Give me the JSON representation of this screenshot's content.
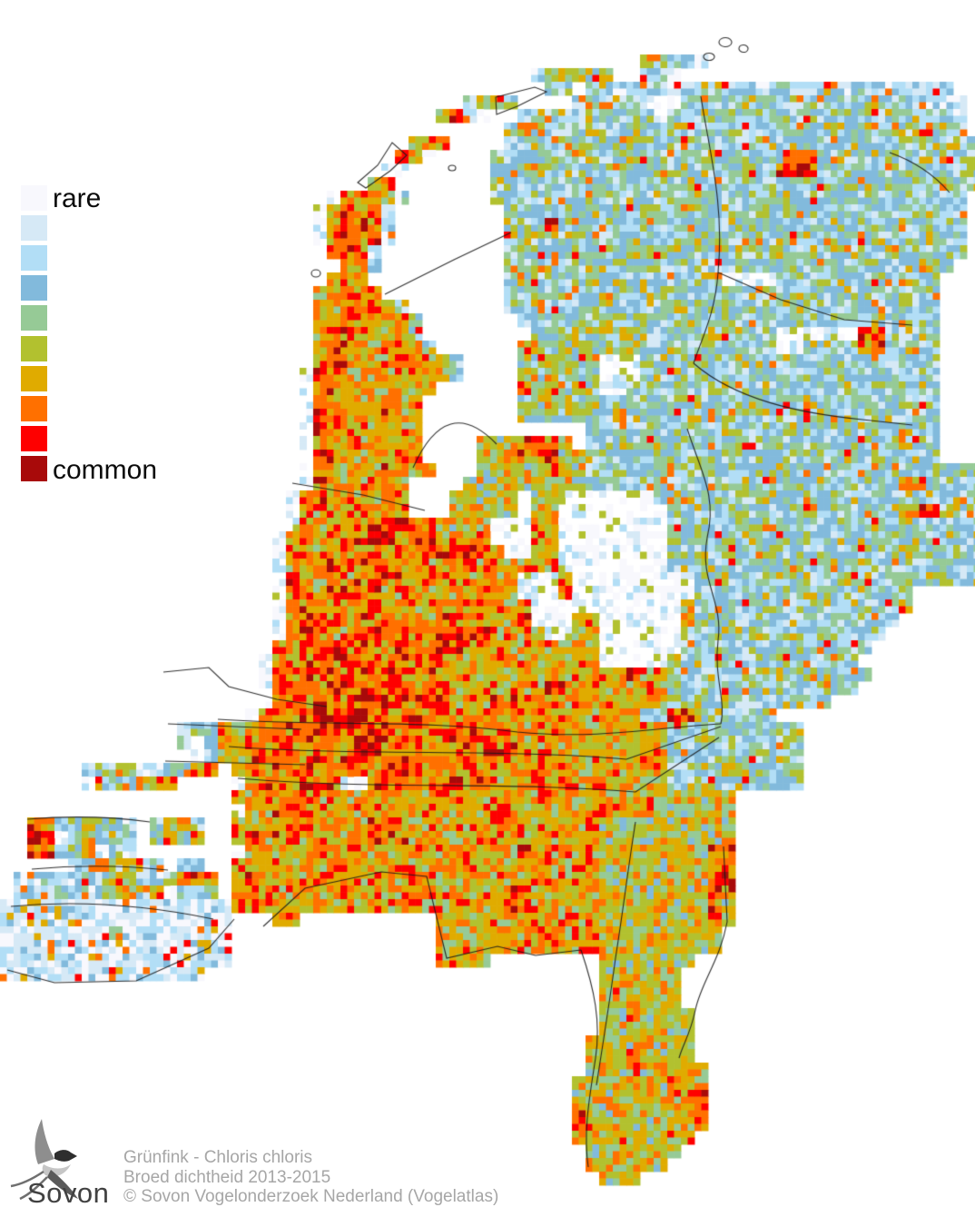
{
  "legend": {
    "rare_label": "rare",
    "common_label": "common",
    "colors": [
      "#f8f8fd",
      "#d6e9f6",
      "#b2def6",
      "#82badc",
      "#96ca96",
      "#b2c12f",
      "#e0ab00",
      "#ff7000",
      "#fe0000",
      "#a80a0a"
    ]
  },
  "caption": {
    "species": "Grünfink - Chloris chloris",
    "subtitle": "Broed dichtheid 2013-2015",
    "copyright": "© Sovon Vogelonderzoek Nederland (Vogelatlas)"
  },
  "logo": {
    "brand": "Sovon"
  },
  "map": {
    "block_size": 15,
    "cols": 72,
    "rows": 88,
    "palette": [
      "#f8f8fd",
      "#d6e9f6",
      "#b2def6",
      "#82badc",
      "#96ca96",
      "#b2c12f",
      "#e0ab00",
      "#ff7000",
      "#fe0000",
      "#a80a0a"
    ],
    "boundary_color": "#1a1a1a",
    "grid": [
      "72.",
      "72.",
      "72.",
      "72.",
      "47. '64231 20.",
      "39. '254635 2. '120 22.",
      "40. '43 1. 272 2.",
      "34. '2563 4. 52 3a 173 '2111 1.",
      "32. '672a 2. 103 1a 203 '21 1.",
      "37. '36 323 1.",
      "30. '567 4. 353",
      "29. '65a 4. 223 '77 123",
      "28. 2a 6. 213 '787 123",
      "27. '66 7. 363",
      "24. 'a67762 6. 353 1.",
      "23. 'a68672 8. 343 1.",
      "23. 'a68762 8. '3337 303 1.",
      "23. 'a67672 8. 343 1.",
      "24. '6772 9. 343 1.",
      "25. '672 9. 333 2.",
      "24. '676 10. 163 4a 123 3.",
      "23. '66766 9. 323 3.",
      "23. '6676663 7. 323 3.",
      "23. '66766663 7. 313 3.",
      "23. '67766663 8. 84 103 6a '77 43 3.",
      "23. '677666663 6. 94 103 2a 43 '77 43 3.",
      "23. '67766666663 4. 64 3a 223 3.",
      "22. 'a77666666663 4. 64 3a 223 3.",
      "22. 'a776666666 6. '7 54 2a 233 3.",
      "22. 'a77666666 7. 64 253 3.",
      "22. 'a76666766 7. 64 '36 233 3.",
      "22. 'a77666666 12. 263 3.",
      "22. 'a76666666 4. '5557775 1. 263 3.",
      "22. 'a77666676 4. '55577755 263 3.",
      "22. 'a766667666 3. '55555755 293",
      "22. 'a7666666 4. 95 233 '77 43",
      "21. 'a77666666 3. 55 1. 25 7a 243",
      "21. 'a76666766 3. 55 1. 25 8a 173 '677 33",
      "21. 'a766668887765 '66 3a '66 8a 233",
      "20. 'a7766778877766 '66 3a '66 8a 233",
      "20. 'a7667776677788 '87 '6aa '66 8a 233",
      "20. 'a666777 '7777666 '76 56 8a 233",
      "20. 'a '7766677776666 46 3a '6 9a 213",
      "20. 'a '7767777666666 46 'aaa6 9a 163 5.",
      "20. 'a '7766777666677 56 3a 8a '6 163 5.",
      "20. 'a '7766677766677 '66667 3a 26 6a '6 153 6.",
      "20. 'a '7876677766777 '77666 '6aa 26 6a 153 7.",
      "20. 147 '68666666 26 6a 143 8.",
      "19. 'a 137 116 5a '6 133 9.",
      "19. 'a 137 116 '66766 153 8.",
      "19. 'a 87 '88 37 76 '77 26 56 143 9.",
      "19. 'a '7777777788777 '66677766666 56 123 11.",
      "18. 'a '77778778777777 57 46 56 '3377 63 13.",
      "13. '2336666 '7777887777777 37 86 56 103 13.",
      "13. '2a36667 '7777778877777 57 66 56 103 13.",
      "14. 'a36677 '7777778877777 57 66 56 103 13.",
      "6. '2336a23367 1. '667 137 '76666677766 56 '3333663333 13.",
      "6. 'a233667 4. 'a67 57 2a 67 '777 86 56 103 13.",
      "17. '667 37 106 116 56 55 18.",
      "17. 'a66 37 96 '7 116 56 55 18.",
      "2. '77336332 1. '3663 2. '666 '6666666776666 116 105 18.",
      "2. '87a36323 1. '3636 2. '676 '7766666777666 '66766666666 55 55 18.",
      "2. '77336a32 7. 'a66 '6666776666666 '66666766666 55 '55577 18.",
      "5. '2363632 1. '23 2. '666 136 116 55 '55577 18.",
      "1. '223222366223677 1. '676 136 116 55 '55577 18.",
      "1. '22232236636a223 1. '786 '6666666666776 '66667766666 55 '55577 18.",
      "171 '676 136 '66667766666 55 '55575 18.",
      "171 3. '66 10. 126 55 '55575 18.",
      "81 '6 81 15. 126 95 1. 18.",
      "171 15. 46 86 95 19.",
      "171 15. 46 8. 75 21.",
      "151 29. 65 22.",
      "44. '565555 22.",
      "44. '556555 22.",
      "44. '5565555 21.",
      "44. '5555655 21.",
      "43. '55556555 21.",
      "43. '55565555 21.",
      "43. '555656555 20.",
      "42. '5556555655 20.",
      "42. '5555655677 20.",
      "42. '7556565677 20.",
      "42. '7756555667 20.",
      "42. '775655566 21.",
      "43. '5565655 22.",
      "43. '556555 23.",
      "44. 35 25.",
      "72."
    ],
    "boundaries": [
      "M424,324 L500,286 L563,256",
      "M455,515 Q492,432 547,489",
      "M772,106 C782,170 798,225 791,300 C788,345 772,375 764,400",
      "M791,300 L860,330 L930,352 L1005,358",
      "M764,400 C810,440 880,455 950,462 L1005,468",
      "M757,472 C772,520 790,545 779,592 C770,640 797,662 791,705 C786,745 800,772 794,797",
      "M240,792 C360,800 470,792 570,806 C660,815 730,800 794,797",
      "M252,822 C400,833 560,824 690,836 L794,800",
      "M262,857 C420,870 560,860 700,872 L792,812",
      "M8,1068 L60,1082 L150,1080 L230,1044 L258,1012",
      "M290,1020 L336,978 L420,960 L470,965 L492,1055 L548,1042 L590,1052 L640,1046",
      "M640,1046 C655,1090 662,1125 656,1165 C650,1205 642,1245 648,1285",
      "M797,932 L801,1015 C793,1058 772,1082 766,1112 C760,1140 752,1150 748,1165",
      "M700,905 C692,955 686,1005 678,1055 C672,1100 664,1150 657,1195",
      "M30,902 Q100,896 165,905",
      "M35,957 Q110,950 185,958",
      "M12,998 Q120,988 235,1012",
      "M322,532 L400,545 L468,562",
      "M180,740 L230,735 L252,756 L305,770 L360,778",
      "M185,797 L332,803",
      "M182,838 L336,842",
      "M775,62 a6,4 0 1 0 12,1 a6,4 0 1 0 -12,-1",
      "M792,46 a7,5 0 1 0 14,1 a7,5 0 1 0 -14,-1",
      "M814,53 a5,4 0 1 0 10,1 a5,4 0 1 0 -10,-1",
      "M432,157 L416,182 L394,201 L403,207 L430,188 L448,171 Z",
      "M546,107 L589,96 L602,101 L570,117 L547,126 Z",
      "M494,185 a4,3 0 1 0 8,0 a4,3 0 1 0 -8,0",
      "M343,301 a5,4 0 1 0 10,0 a5,4 0 1 0 -10,0",
      "M980,168 Q1020,182 1046,212"
    ]
  }
}
